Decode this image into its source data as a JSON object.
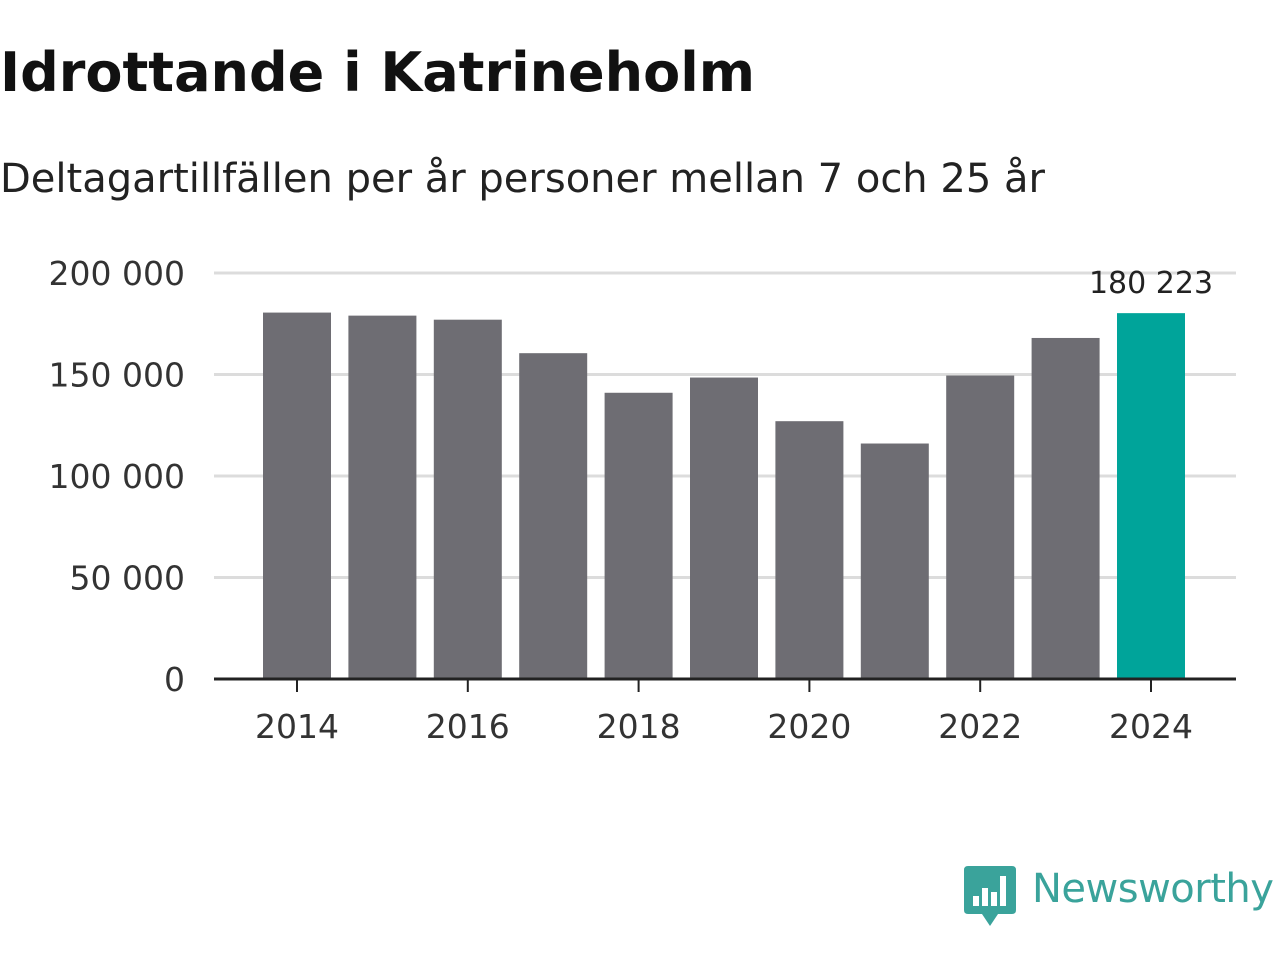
{
  "title": "Idrottande i Katrineholm",
  "subtitle": "Deltagartillfällen per år personer mellan 7 och 25 år",
  "brand": {
    "name": "Newsworthy",
    "logo_icon": "bar-chart-speech-bubble-icon"
  },
  "colors": {
    "bar": "#6e6d73",
    "highlight": "#00a49a",
    "grid": "#dcdcdc",
    "axis": "#222222",
    "brand": "#3aa39b"
  },
  "chart_data": {
    "type": "bar",
    "title": "Idrottande i Katrineholm",
    "subtitle": "Deltagartillfällen per år personer mellan 7 och 25 år",
    "xlabel": "",
    "ylabel": "",
    "categories": [
      2014,
      2015,
      2016,
      2017,
      2018,
      2019,
      2020,
      2021,
      2022,
      2023,
      2024
    ],
    "values": [
      180500,
      179000,
      177000,
      160500,
      141000,
      148500,
      127000,
      116000,
      149500,
      168000,
      180223
    ],
    "highlight_index": 10,
    "highlight_label": "180 223",
    "ylim": [
      0,
      200000
    ],
    "yticks": [
      0,
      50000,
      100000,
      150000,
      200000
    ],
    "ytick_labels": [
      "0",
      "50 000",
      "100 000",
      "150 000",
      "200 000"
    ],
    "xticks": [
      2014,
      2016,
      2018,
      2020,
      2022,
      2024
    ],
    "xtick_labels": [
      "2014",
      "2016",
      "2018",
      "2020",
      "2022",
      "2024"
    ],
    "grid": true,
    "legend": "none"
  }
}
